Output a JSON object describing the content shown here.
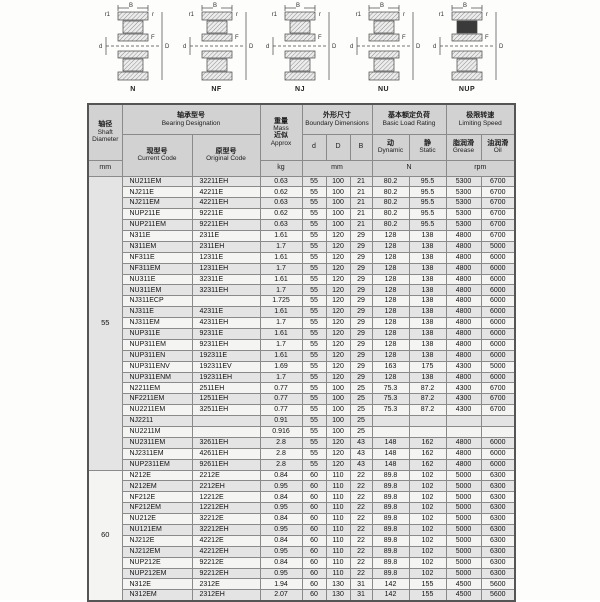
{
  "diagrams": {
    "labels": [
      "N",
      "NF",
      "NJ",
      "NU",
      "NUP"
    ],
    "dims": {
      "B": "B",
      "r1": "r1",
      "r": "r",
      "F": "F",
      "d": "d",
      "D": "D"
    }
  },
  "table": {
    "header": {
      "shaft_cn": "轴径",
      "shaft_en1": "Shaft",
      "shaft_en2": "Diameter",
      "shaft_unit": "mm",
      "designation_cn": "轴承型号",
      "designation_en": "Bearing Designation",
      "current_cn": "现型号",
      "current_en": "Current Code",
      "original_cn": "原型号",
      "original_en": "Original Code",
      "mass_cn": "重量",
      "mass_en": "Mass",
      "mass_cn2": "近似",
      "mass_en2": "Approx",
      "mass_unit": "kg",
      "boundary_cn": "外形尺寸",
      "boundary_en": "Boundary Dimensions",
      "col_d": "d",
      "col_D": "D",
      "col_B": "B",
      "boundary_unit": "mm",
      "load_cn": "基本额定负荷",
      "load_en": "Basic Load Rating",
      "dynamic_cn": "动",
      "dynamic_en": "Dynamic",
      "static_cn": "静",
      "static_en": "Static",
      "load_unit": "N",
      "speed_cn": "极限转速",
      "speed_en": "Limiting Speed",
      "grease_cn": "脂润滑",
      "grease_en": "Grease",
      "oil_cn": "油润滑",
      "oil_en": "Oil",
      "speed_unit": "rpm"
    },
    "blocks": [
      {
        "diameter": "55",
        "rows": [
          [
            "NU211EM",
            "32211EH",
            "0.63",
            "55",
            "100",
            "21",
            "80.2",
            "95.5",
            "5300",
            "6700"
          ],
          [
            "NJ211E",
            "42211E",
            "0.62",
            "55",
            "100",
            "21",
            "80.2",
            "95.5",
            "5300",
            "6700"
          ],
          [
            "NJ211EM",
            "42211EH",
            "0.63",
            "55",
            "100",
            "21",
            "80.2",
            "95.5",
            "5300",
            "6700"
          ],
          [
            "NUP211E",
            "92211E",
            "0.62",
            "55",
            "100",
            "21",
            "80.2",
            "95.5",
            "5300",
            "6700"
          ],
          [
            "NUP211EM",
            "92211EH",
            "0.63",
            "55",
            "100",
            "21",
            "80.2",
            "95.5",
            "5300",
            "6700"
          ],
          [
            "N311E",
            "2311E",
            "1.61",
            "55",
            "120",
            "29",
            "128",
            "138",
            "4800",
            "6700"
          ],
          [
            "N311EM",
            "2311EH",
            "1.7",
            "55",
            "120",
            "29",
            "128",
            "138",
            "4800",
            "5000"
          ],
          [
            "NF311E",
            "12311E",
            "1.61",
            "55",
            "120",
            "29",
            "128",
            "138",
            "4800",
            "6000"
          ],
          [
            "NF311EM",
            "12311EH",
            "1.7",
            "55",
            "120",
            "29",
            "128",
            "138",
            "4800",
            "6000"
          ],
          [
            "NU311E",
            "32311E",
            "1.61",
            "55",
            "120",
            "29",
            "128",
            "138",
            "4800",
            "6000"
          ],
          [
            "NU311EM",
            "32311EH",
            "1.7",
            "55",
            "120",
            "29",
            "128",
            "138",
            "4800",
            "6000"
          ],
          [
            "NJ311ECP",
            "",
            "1.725",
            "55",
            "120",
            "29",
            "128",
            "138",
            "4800",
            "6000"
          ],
          [
            "NJ311E",
            "42311E",
            "1.61",
            "55",
            "120",
            "29",
            "128",
            "138",
            "4800",
            "6000"
          ],
          [
            "NJ311EM",
            "42311EH",
            "1.7",
            "55",
            "120",
            "29",
            "128",
            "138",
            "4800",
            "6000"
          ],
          [
            "NUP311E",
            "92311E",
            "1.61",
            "55",
            "120",
            "29",
            "128",
            "138",
            "4800",
            "6000"
          ],
          [
            "NUP311EM",
            "92311EH",
            "1.7",
            "55",
            "120",
            "29",
            "128",
            "138",
            "4800",
            "6000"
          ],
          [
            "NUP311EN",
            "192311E",
            "1.61",
            "55",
            "120",
            "29",
            "128",
            "138",
            "4800",
            "6000"
          ],
          [
            "NUP311ENV",
            "192311EV",
            "1.69",
            "55",
            "120",
            "29",
            "163",
            "175",
            "4300",
            "5000"
          ],
          [
            "NUP311ENM",
            "192311EH",
            "1.7",
            "55",
            "120",
            "29",
            "128",
            "138",
            "4800",
            "6000"
          ],
          [
            "N2211EM",
            "2511EH",
            "0.77",
            "55",
            "100",
            "25",
            "75.3",
            "87.2",
            "4300",
            "6700"
          ],
          [
            "NF2211EM",
            "12511EH",
            "0.77",
            "55",
            "100",
            "25",
            "75.3",
            "87.2",
            "4300",
            "6700"
          ],
          [
            "NU2211EM",
            "32511EH",
            "0.77",
            "55",
            "100",
            "25",
            "75.3",
            "87.2",
            "4300",
            "6700"
          ],
          [
            "NJ2211",
            "",
            "0.91",
            "55",
            "100",
            "25",
            "",
            "",
            "",
            ""
          ],
          [
            "NU2211M",
            "",
            "0.916",
            "55",
            "100",
            "25",
            "",
            "",
            "",
            ""
          ],
          [
            "NU2311EM",
            "32611EH",
            "2.8",
            "55",
            "120",
            "43",
            "148",
            "162",
            "4800",
            "6000"
          ],
          [
            "NJ2311EM",
            "42611EH",
            "2.8",
            "55",
            "120",
            "43",
            "148",
            "162",
            "4800",
            "6000"
          ],
          [
            "NUP2311EM",
            "92611EH",
            "2.8",
            "55",
            "120",
            "43",
            "148",
            "162",
            "4800",
            "6000"
          ]
        ]
      },
      {
        "diameter": "60",
        "rows": [
          [
            "N212E",
            "2212E",
            "0.84",
            "60",
            "110",
            "22",
            "89.8",
            "102",
            "5000",
            "6300"
          ],
          [
            "N212EM",
            "2212EH",
            "0.95",
            "60",
            "110",
            "22",
            "89.8",
            "102",
            "5000",
            "6300"
          ],
          [
            "NF212E",
            "12212E",
            "0.84",
            "60",
            "110",
            "22",
            "89.8",
            "102",
            "5000",
            "6300"
          ],
          [
            "NF212EM",
            "12212EH",
            "0.95",
            "60",
            "110",
            "22",
            "89.8",
            "102",
            "5000",
            "6300"
          ],
          [
            "NU212E",
            "32212E",
            "0.84",
            "60",
            "110",
            "22",
            "89.8",
            "102",
            "5000",
            "6300"
          ],
          [
            "NU121EM",
            "32212EH",
            "0.95",
            "60",
            "110",
            "22",
            "89.8",
            "102",
            "5000",
            "6300"
          ],
          [
            "NJ212E",
            "42212E",
            "0.84",
            "60",
            "110",
            "22",
            "89.8",
            "102",
            "5000",
            "6300"
          ],
          [
            "NJ212EM",
            "42212EH",
            "0.95",
            "60",
            "110",
            "22",
            "89.8",
            "102",
            "5000",
            "6300"
          ],
          [
            "NUP212E",
            "92212E",
            "0.84",
            "60",
            "110",
            "22",
            "89.8",
            "102",
            "5000",
            "6300"
          ],
          [
            "NUP212EM",
            "92212EH",
            "0.95",
            "60",
            "110",
            "22",
            "89.8",
            "102",
            "5000",
            "6300"
          ],
          [
            "N312E",
            "2312E",
            "1.94",
            "60",
            "130",
            "31",
            "142",
            "155",
            "4500",
            "5600"
          ],
          [
            "N312EM",
            "2312EH",
            "2.07",
            "60",
            "130",
            "31",
            "142",
            "155",
            "4500",
            "5600"
          ]
        ]
      }
    ]
  }
}
